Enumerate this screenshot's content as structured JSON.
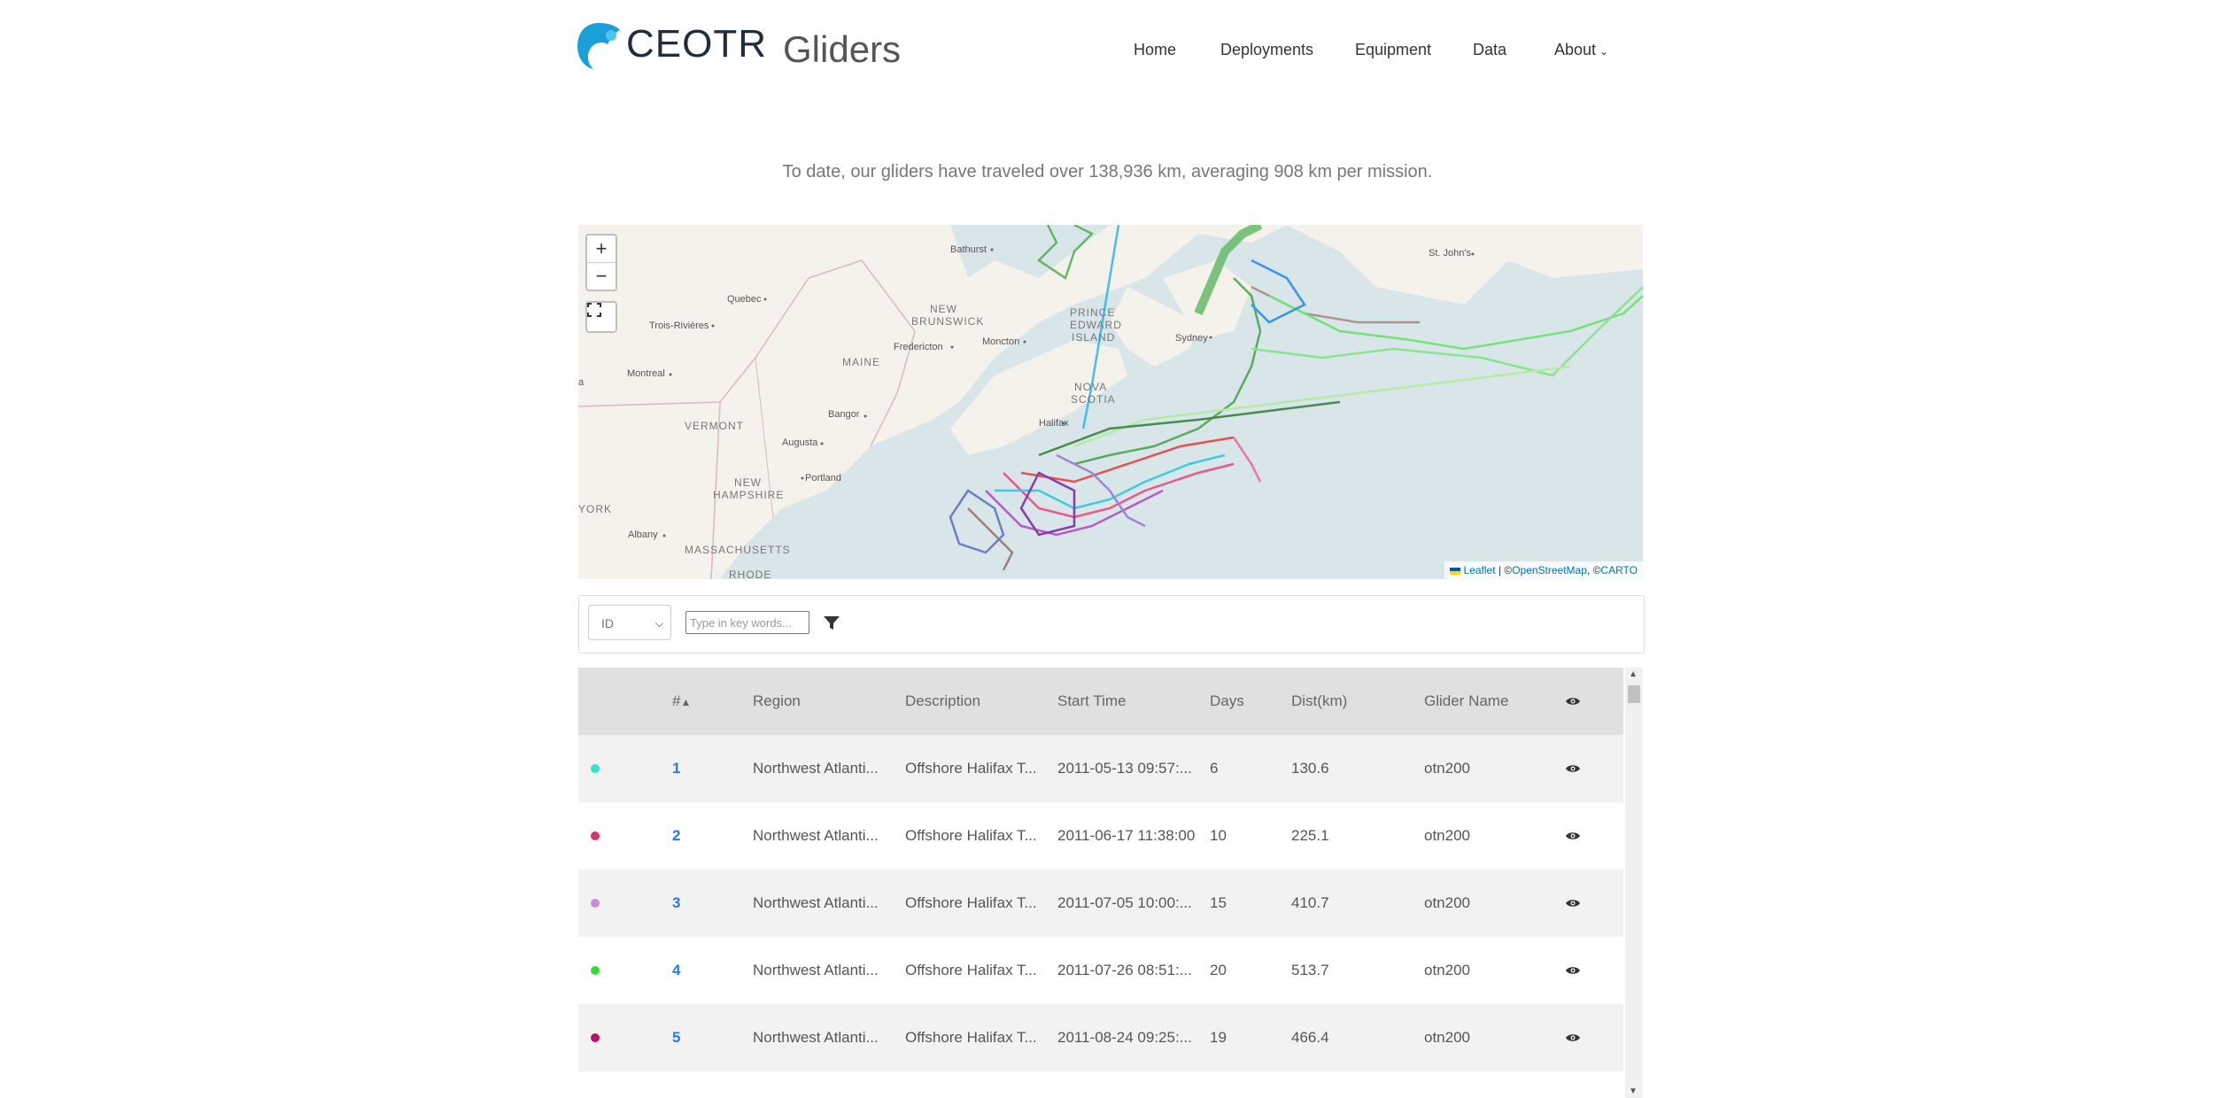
{
  "header": {
    "brand": "CEOTR",
    "product": "Gliders",
    "nav": [
      {
        "label": "Home"
      },
      {
        "label": "Deployments"
      },
      {
        "label": "Equipment"
      },
      {
        "label": "Data"
      },
      {
        "label": "About"
      }
    ]
  },
  "tagline": "To date, our gliders have traveled over 138,936 km, averaging 908 km per mission.",
  "map": {
    "zoom_in": "+",
    "zoom_out": "−",
    "attribution": {
      "leaflet": "Leaflet",
      "sep": " | ©",
      "osm": "OpenStreetMap",
      "sep2": ", ©",
      "carto": "CARTO"
    },
    "labels": {
      "bathurst": "Bathurst",
      "quebec": "Quebec",
      "trois_rivieres": "Trois-Rivières",
      "new_brunswick_1": "NEW",
      "new_brunswick_2": "BRUNSWICK",
      "fredericton": "Fredericton",
      "moncton": "Moncton",
      "pei_1": "PRINCE",
      "pei_2": "EDWARD",
      "pei_3": "ISLAND",
      "sydney": "Sydney",
      "st_johns": "St. John's",
      "montreal": "Montreal",
      "maine": "MAINE",
      "nova_scotia_1": "NOVA",
      "nova_scotia_2": "SCOTIA",
      "bangor": "Bangor",
      "halifax": "Halifax",
      "vermont": "VERMONT",
      "augusta": "Augusta",
      "new_hampshire_1": "NEW",
      "new_hampshire_2": "HAMPSHIRE",
      "portland": "Portland",
      "york": "YORK",
      "albany": "Albany",
      "massachusetts": "MASSACHUSETTS",
      "rhode": "RHODE",
      "edge_a": "a"
    }
  },
  "filter": {
    "select_value": "ID",
    "search_placeholder": "Type in key words..."
  },
  "table": {
    "columns": [
      "#",
      "Region",
      "Description",
      "Start Time",
      "Days",
      "Dist(km)",
      "Glider Name"
    ],
    "rows": [
      {
        "color": "#2ee6c8",
        "id": "1",
        "region": "Northwest Atlanti...",
        "description": "Offshore Halifax T...",
        "start": "2011-05-13 09:57:...",
        "days": "6",
        "dist": "130.6",
        "glider": "otn200"
      },
      {
        "color": "#d6336c",
        "id": "2",
        "region": "Northwest Atlanti...",
        "description": "Offshore Halifax T...",
        "start": "2011-06-17 11:38:00",
        "days": "10",
        "dist": "225.1",
        "glider": "otn200"
      },
      {
        "color": "#cc88dd",
        "id": "3",
        "region": "Northwest Atlanti...",
        "description": "Offshore Halifax T...",
        "start": "2011-07-05 10:00:...",
        "days": "15",
        "dist": "410.7",
        "glider": "otn200"
      },
      {
        "color": "#33dd33",
        "id": "4",
        "region": "Northwest Atlanti...",
        "description": "Offshore Halifax T...",
        "start": "2011-07-26 08:51:...",
        "days": "20",
        "dist": "513.7",
        "glider": "otn200"
      },
      {
        "color": "#bb1166",
        "id": "5",
        "region": "Northwest Atlanti...",
        "description": "Offshore Halifax T...",
        "start": "2011-08-24 09:25:...",
        "days": "19",
        "dist": "466.4",
        "glider": "otn200"
      }
    ]
  }
}
